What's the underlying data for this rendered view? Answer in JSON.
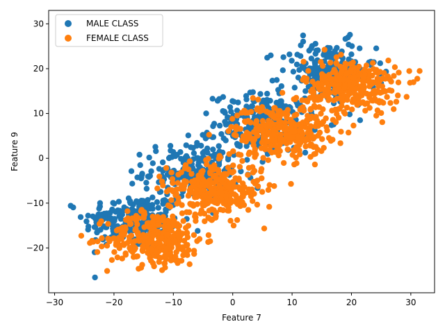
{
  "chart_data": {
    "type": "scatter",
    "title": "",
    "xlabel": "Feature 7",
    "ylabel": "Feature 9",
    "xlim": [
      -31,
      34
    ],
    "ylim": [
      -30,
      33
    ],
    "xticks": [
      -30,
      -20,
      -10,
      0,
      10,
      20,
      30
    ],
    "yticks": [
      -20,
      -10,
      0,
      10,
      20,
      30
    ],
    "grid": false,
    "legend_position": "top-left",
    "series": [
      {
        "name": "MALE CLASS",
        "color": "#1f77b4",
        "clusters": [
          {
            "center": [
              -17,
              -14
            ],
            "spread": [
              4,
              3
            ],
            "count": 220
          },
          {
            "center": [
              -7,
              -3
            ],
            "spread": [
              4,
              3.2
            ],
            "count": 220
          },
          {
            "center": [
              5,
              8
            ],
            "spread": [
              4,
              3.2
            ],
            "count": 220
          },
          {
            "center": [
              16,
              19
            ],
            "spread": [
              4,
              3.5
            ],
            "count": 220
          }
        ]
      },
      {
        "name": "FEMALE CLASS",
        "color": "#ff7f0e",
        "clusters": [
          {
            "center": [
              -13,
              -18
            ],
            "spread": [
              4,
              3
            ],
            "count": 320
          },
          {
            "center": [
              -3,
              -7
            ],
            "spread": [
              4,
              3
            ],
            "count": 320
          },
          {
            "center": [
              8,
              6
            ],
            "spread": [
              4,
              3
            ],
            "count": 320
          },
          {
            "center": [
              20,
              16
            ],
            "spread": [
              4,
              3
            ],
            "count": 320
          }
        ]
      }
    ]
  }
}
